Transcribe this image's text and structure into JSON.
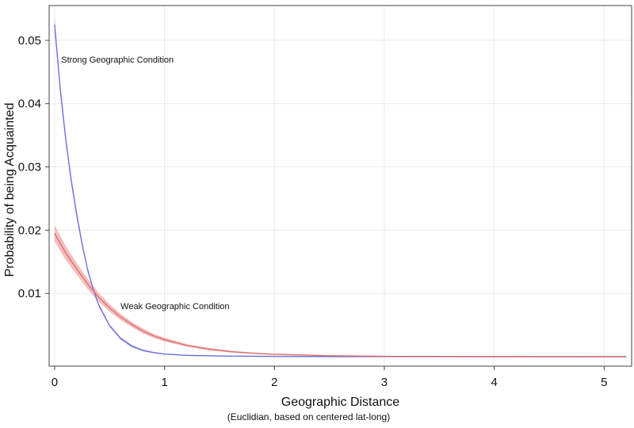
{
  "chart_data": {
    "type": "line",
    "title": "",
    "xlabel": "Geographic Distance",
    "xlabel_sub": "(Euclidian, based on centered lat-long)",
    "ylabel": "Probability of being Acquainted",
    "xlim": [
      -0.05,
      5.25
    ],
    "ylim": [
      -0.0015,
      0.0555
    ],
    "xticks": [
      0,
      1,
      2,
      3,
      4,
      5
    ],
    "xtick_labels": [
      "0",
      "1",
      "2",
      "3",
      "4",
      "5"
    ],
    "yticks": [
      0.01,
      0.02,
      0.03,
      0.04,
      0.05
    ],
    "ytick_labels": [
      "0.01",
      "0.02",
      "0.03",
      "0.04",
      "0.05"
    ],
    "grid": true,
    "legend": "none",
    "series": [
      {
        "name": "Strong Geographic Condition",
        "color": "#6b6bd6",
        "band_color": "#a6a6e8",
        "x": [
          0,
          0.05,
          0.1,
          0.15,
          0.2,
          0.25,
          0.3,
          0.35,
          0.4,
          0.5,
          0.6,
          0.7,
          0.8,
          0.9,
          1.0,
          1.2,
          1.5,
          2.0,
          2.5,
          3.0,
          4.0,
          5.0,
          5.2
        ],
        "y": [
          0.0525,
          0.0425,
          0.0345,
          0.028,
          0.0225,
          0.0178,
          0.0138,
          0.0107,
          0.0082,
          0.0049,
          0.0029,
          0.0017,
          0.001,
          0.00065,
          0.00042,
          0.00022,
          0.0001,
          4e-05,
          2e-05,
          1e-05,
          0.0,
          0.0,
          0.0
        ],
        "band_halfwidth": [
          0.0012,
          0.001,
          0.0008,
          0.0007,
          0.0006,
          0.0005,
          0.0004,
          0.0003,
          0.0003,
          0.0002,
          0.0002,
          0.0002,
          0.00015,
          0.00012,
          0.0001,
          0.0001,
          0.0001,
          0.0001,
          0.0001,
          0.0001,
          0.0001,
          0.0001,
          0.0001
        ]
      },
      {
        "name": "Weak Geographic Condition",
        "color": "#d96a6a",
        "band_color": "#f0a8a8",
        "x": [
          0,
          0.1,
          0.2,
          0.3,
          0.4,
          0.5,
          0.6,
          0.7,
          0.8,
          0.9,
          1.0,
          1.2,
          1.4,
          1.6,
          1.8,
          2.0,
          2.5,
          3.0,
          4.0,
          5.0,
          5.2
        ],
        "y": [
          0.0195,
          0.0164,
          0.0139,
          0.0115,
          0.0094,
          0.0077,
          0.0063,
          0.0051,
          0.0041,
          0.0033,
          0.0027,
          0.0018,
          0.0012,
          0.0008,
          0.00055,
          0.00038,
          0.00014,
          5e-05,
          1e-05,
          0.0,
          0.0
        ],
        "band_halfwidth": [
          0.0013,
          0.0011,
          0.0009,
          0.0008,
          0.0007,
          0.0006,
          0.0005,
          0.0004,
          0.0004,
          0.0003,
          0.0003,
          0.0002,
          0.0002,
          0.00015,
          0.0001,
          0.0001,
          0.0001,
          0.0001,
          0.0001,
          0.0001,
          0.0001
        ]
      }
    ],
    "annotations": [
      {
        "text": "Strong Geographic Condition",
        "x": 0.06,
        "y": 0.0465,
        "series": 0
      },
      {
        "text": "Weak Geographic Condition",
        "x": 0.6,
        "y": 0.0075,
        "series": 1
      }
    ]
  }
}
